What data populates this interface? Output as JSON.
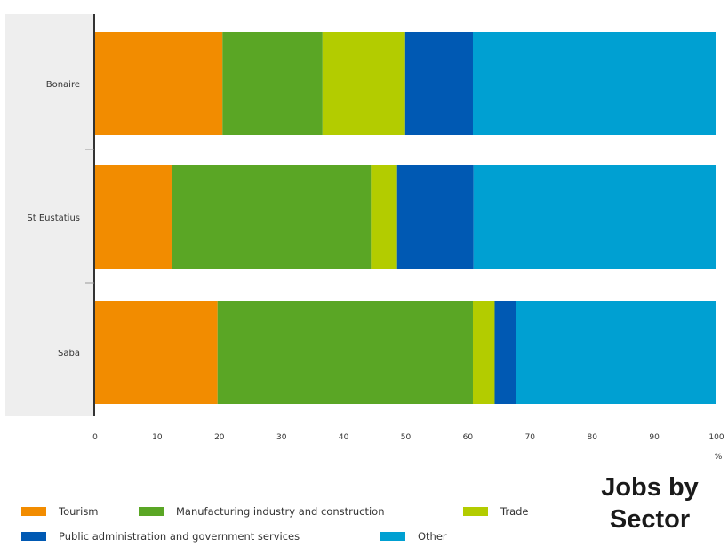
{
  "chart_data": {
    "type": "bar",
    "orientation": "horizontal",
    "stacked": true,
    "title": "Jobs by Sector",
    "title_lines": [
      "Jobs by",
      "Sector"
    ],
    "x_unit": "%",
    "xlim": [
      0,
      100
    ],
    "x_ticks": [
      0,
      10,
      20,
      30,
      40,
      50,
      60,
      70,
      80,
      90,
      100
    ],
    "categories": [
      "Bonaire",
      "St Eustatius",
      "Saba"
    ],
    "series": [
      {
        "name": "Tourism",
        "color": "#f28c00",
        "values": [
          20.5,
          12.3,
          19.7
        ]
      },
      {
        "name": "Manufacturing industry and construction",
        "color": "#5aa625",
        "values": [
          16.1,
          32.1,
          41.1
        ]
      },
      {
        "name": "Trade",
        "color": "#b3cc00",
        "values": [
          13.3,
          4.2,
          3.5
        ]
      },
      {
        "name": "Public administration and government services",
        "color": "#0059b3",
        "values": [
          10.9,
          12.3,
          3.4
        ]
      },
      {
        "name": "Other",
        "color": "#00a0d2",
        "values": [
          39.2,
          39.1,
          32.3
        ]
      }
    ],
    "legend_position": "bottom",
    "grid": false
  }
}
